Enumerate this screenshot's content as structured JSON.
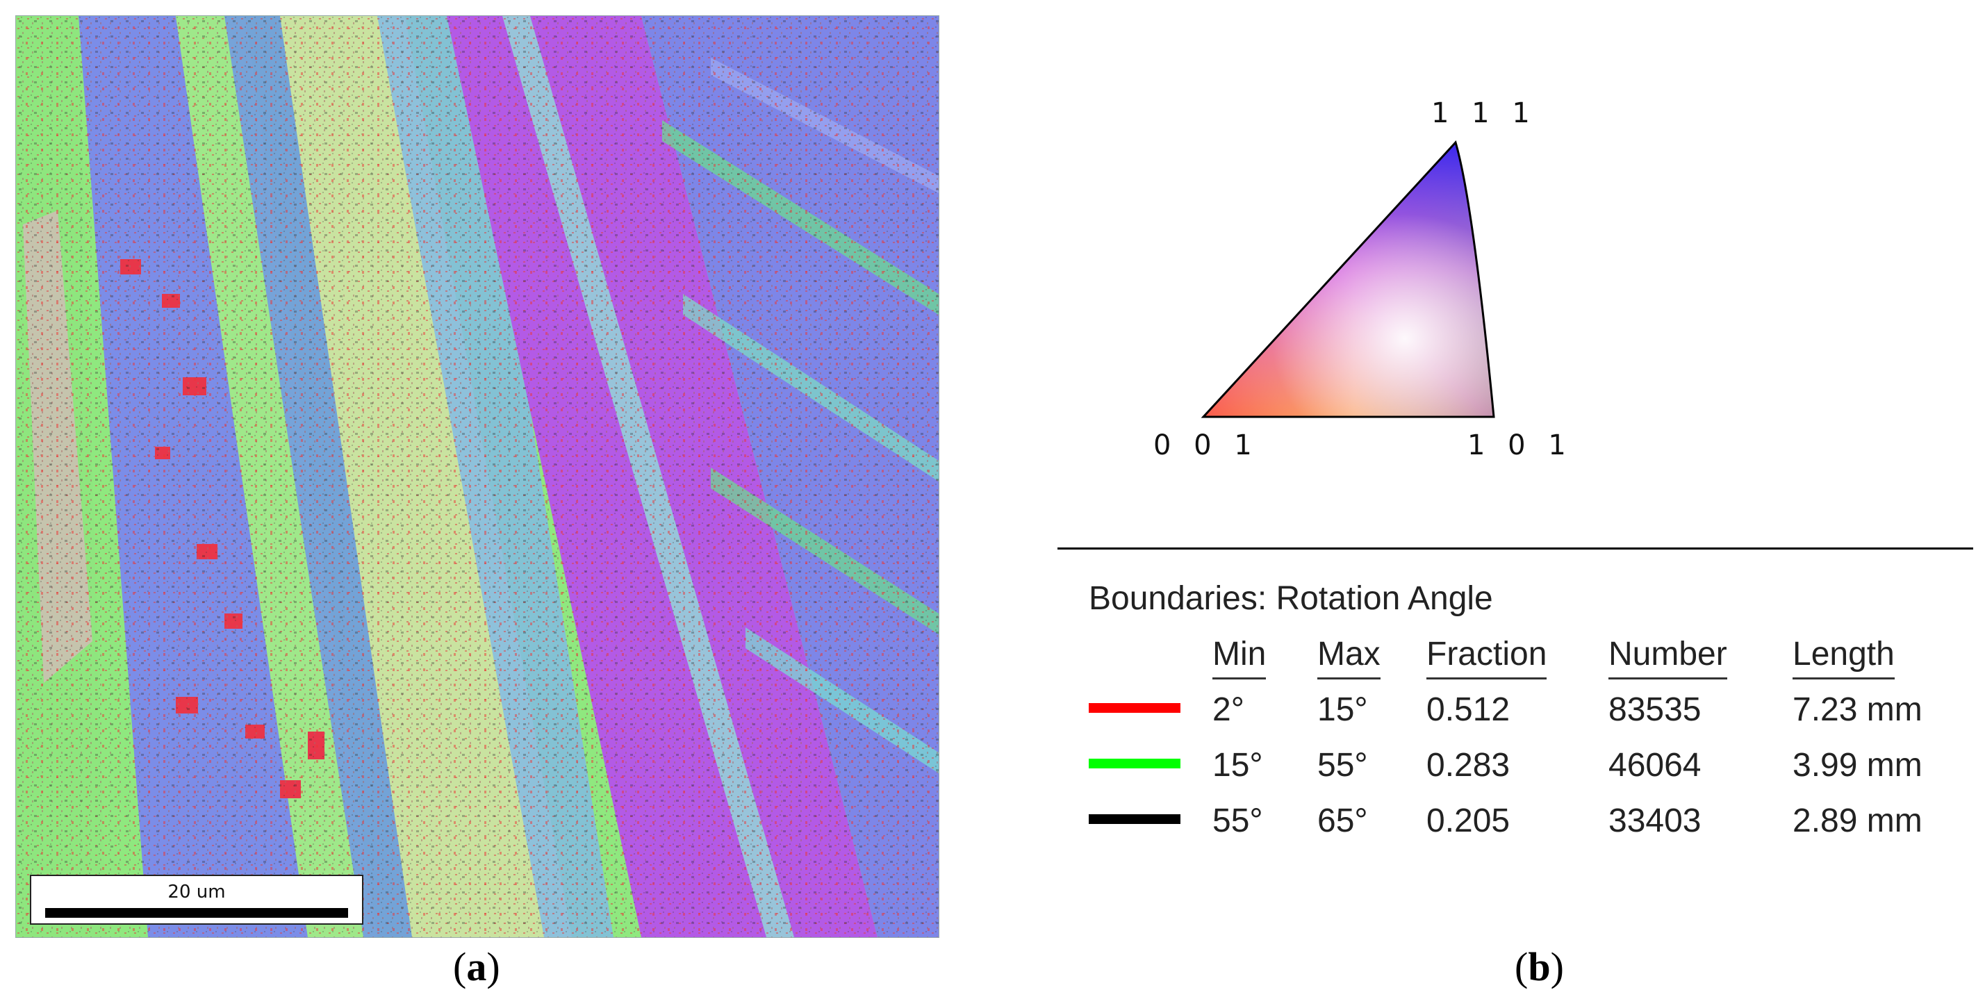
{
  "panel_a": {
    "label": "a",
    "scale_bar": "20 um"
  },
  "panel_b": {
    "label": "b",
    "ipf": {
      "corner_top": "1 1 1",
      "corner_left": "0 0 1",
      "corner_right": "1 0 1"
    },
    "legend": {
      "title": "Boundaries: Rotation Angle",
      "columns": [
        "Min",
        "Max",
        "Fraction",
        "Number",
        "Length"
      ],
      "rows": [
        {
          "color": "#ff0000",
          "min": "2°",
          "max": "15°",
          "fraction": "0.512",
          "number": "83535",
          "length": "7.23 mm"
        },
        {
          "color": "#00ff00",
          "min": "15°",
          "max": "55°",
          "fraction": "0.283",
          "number": "46064",
          "length": "3.99 mm"
        },
        {
          "color": "#000000",
          "min": "55°",
          "max": "65°",
          "fraction": "0.205",
          "number": "33403",
          "length": "2.89 mm"
        }
      ]
    }
  }
}
